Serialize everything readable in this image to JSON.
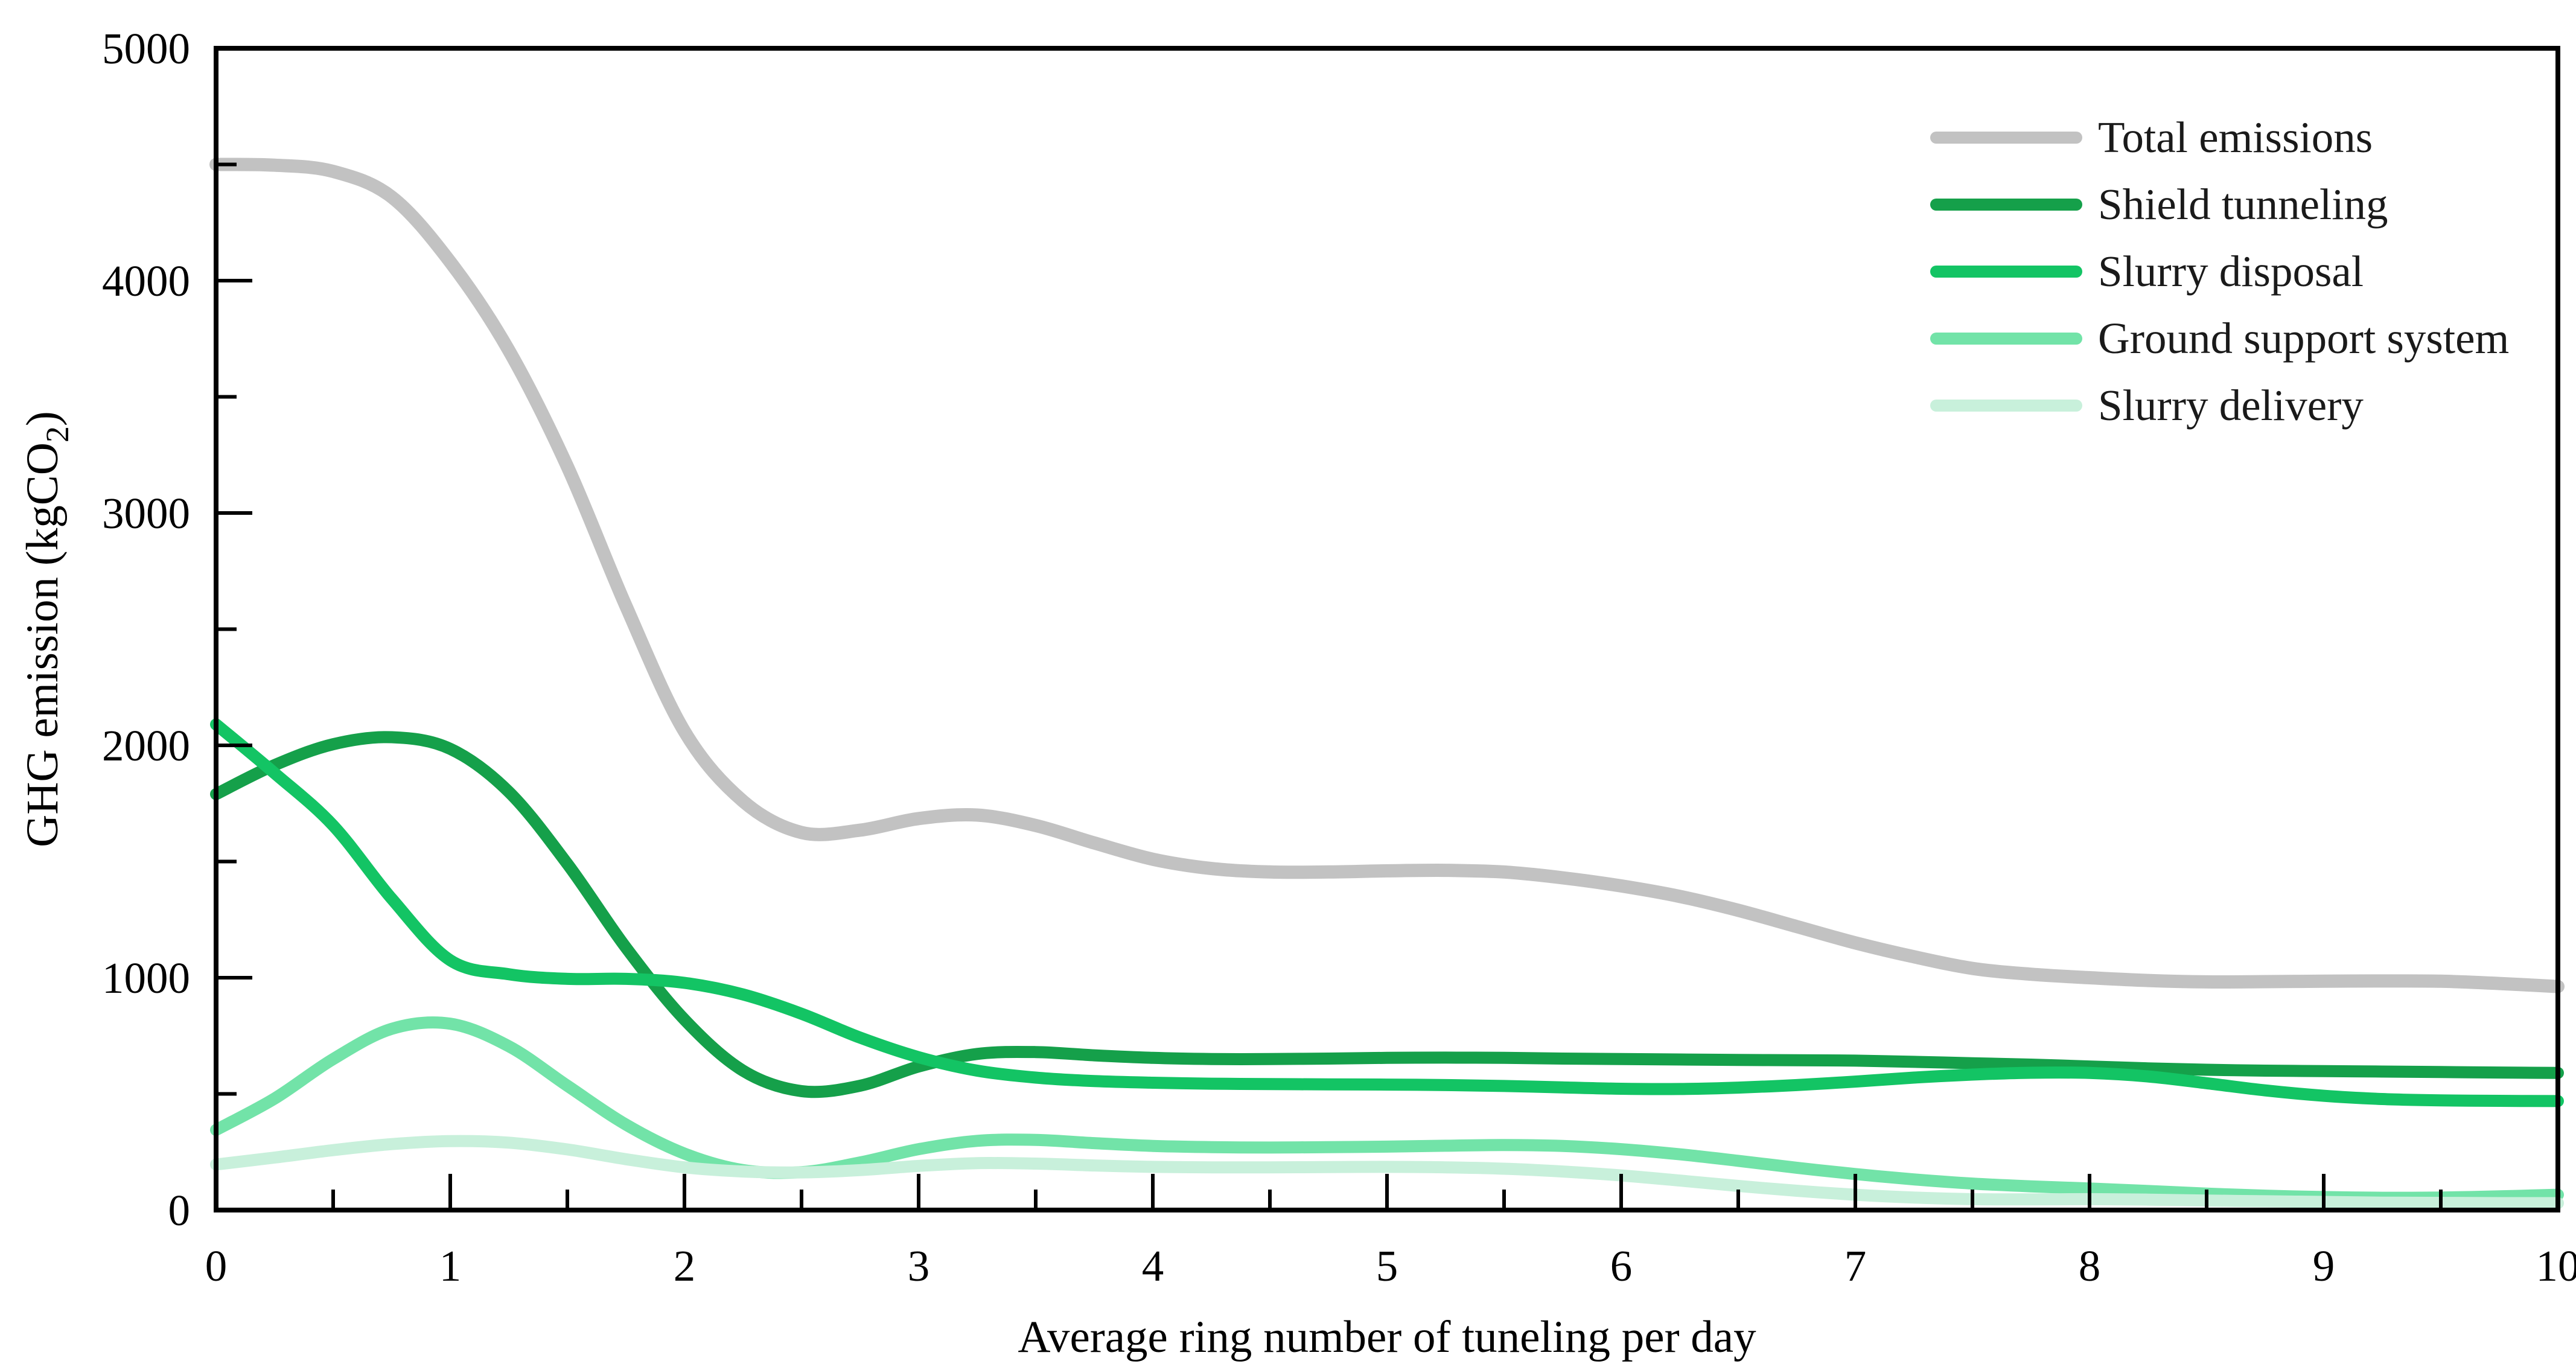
{
  "figure": {
    "background_color": "#ffffff",
    "text_color": "#000000",
    "axis_color": "#000000"
  },
  "chart_data": {
    "type": "line",
    "title": "",
    "xlabel": "Average ring number of tuneling per day",
    "ylabel": "GHG emission (kgCO2)",
    "ylabel_parts": {
      "pre": "GHG emission (kgCO",
      "sub": "2",
      "post": ")"
    },
    "xlim": [
      0,
      10
    ],
    "ylim": [
      0,
      5000
    ],
    "x_major_step": 1,
    "x_minor_step": 0.5,
    "y_major_step": 1000,
    "y_minor_step": 500,
    "x_tick_labels": [
      "0",
      "1",
      "2",
      "3",
      "4",
      "5",
      "6",
      "7",
      "8",
      "9",
      "10"
    ],
    "y_tick_labels": [
      "0",
      "1000",
      "2000",
      "3000",
      "4000",
      "5000"
    ],
    "grid": false,
    "legend_position": "top-right",
    "series": [
      {
        "name": "Total emissions",
        "color": "#c2c2c2",
        "width": 22,
        "points": [
          [
            0,
            4500
          ],
          [
            0.25,
            4497
          ],
          [
            0.5,
            4470
          ],
          [
            0.75,
            4360
          ],
          [
            1,
            4080
          ],
          [
            1.25,
            3700
          ],
          [
            1.5,
            3200
          ],
          [
            1.75,
            2600
          ],
          [
            2,
            2060
          ],
          [
            2.25,
            1760
          ],
          [
            2.5,
            1625
          ],
          [
            2.75,
            1635
          ],
          [
            3,
            1685
          ],
          [
            3.25,
            1700
          ],
          [
            3.5,
            1655
          ],
          [
            3.75,
            1580
          ],
          [
            4,
            1510
          ],
          [
            4.25,
            1470
          ],
          [
            4.5,
            1455
          ],
          [
            4.75,
            1455
          ],
          [
            5,
            1460
          ],
          [
            5.25,
            1462
          ],
          [
            5.5,
            1455
          ],
          [
            5.75,
            1430
          ],
          [
            6,
            1395
          ],
          [
            6.25,
            1350
          ],
          [
            6.5,
            1290
          ],
          [
            6.75,
            1220
          ],
          [
            7,
            1150
          ],
          [
            7.25,
            1090
          ],
          [
            7.5,
            1040
          ],
          [
            7.75,
            1015
          ],
          [
            8,
            1000
          ],
          [
            8.25,
            988
          ],
          [
            8.5,
            982
          ],
          [
            8.75,
            983
          ],
          [
            9,
            985
          ],
          [
            9.25,
            986
          ],
          [
            9.5,
            985
          ],
          [
            9.75,
            975
          ],
          [
            10,
            962
          ]
        ]
      },
      {
        "name": "Shield tunneling",
        "color": "#15a04a",
        "width": 20,
        "points": [
          [
            0,
            1790
          ],
          [
            0.25,
            1915
          ],
          [
            0.5,
            2005
          ],
          [
            0.75,
            2035
          ],
          [
            1,
            1985
          ],
          [
            1.25,
            1800
          ],
          [
            1.5,
            1490
          ],
          [
            1.75,
            1130
          ],
          [
            2,
            820
          ],
          [
            2.25,
            600
          ],
          [
            2.5,
            512
          ],
          [
            2.75,
            535
          ],
          [
            3,
            618
          ],
          [
            3.25,
            672
          ],
          [
            3.5,
            680
          ],
          [
            3.75,
            666
          ],
          [
            4,
            655
          ],
          [
            4.25,
            650
          ],
          [
            4.5,
            650
          ],
          [
            4.75,
            652
          ],
          [
            5,
            655
          ],
          [
            5.25,
            656
          ],
          [
            5.5,
            655
          ],
          [
            5.75,
            652
          ],
          [
            6,
            650
          ],
          [
            6.25,
            648
          ],
          [
            6.5,
            646
          ],
          [
            6.75,
            645
          ],
          [
            7,
            643
          ],
          [
            7.25,
            638
          ],
          [
            7.5,
            632
          ],
          [
            7.75,
            626
          ],
          [
            8,
            618
          ],
          [
            8.25,
            610
          ],
          [
            8.5,
            604
          ],
          [
            8.75,
            600
          ],
          [
            9,
            598
          ],
          [
            9.25,
            596
          ],
          [
            9.5,
            594
          ],
          [
            9.75,
            592
          ],
          [
            10,
            590
          ]
        ]
      },
      {
        "name": "Slurry disposal",
        "color": "#13c464",
        "width": 20,
        "points": [
          [
            0,
            2090
          ],
          [
            0.25,
            1880
          ],
          [
            0.5,
            1655
          ],
          [
            0.75,
            1340
          ],
          [
            1,
            1075
          ],
          [
            1.25,
            1015
          ],
          [
            1.5,
            995
          ],
          [
            1.75,
            995
          ],
          [
            2,
            978
          ],
          [
            2.25,
            928
          ],
          [
            2.5,
            845
          ],
          [
            2.75,
            742
          ],
          [
            3,
            658
          ],
          [
            3.25,
            600
          ],
          [
            3.5,
            570
          ],
          [
            3.75,
            555
          ],
          [
            4,
            548
          ],
          [
            4.25,
            544
          ],
          [
            4.5,
            542
          ],
          [
            4.75,
            541
          ],
          [
            5,
            540
          ],
          [
            5.25,
            538
          ],
          [
            5.5,
            534
          ],
          [
            5.75,
            528
          ],
          [
            6,
            522
          ],
          [
            6.25,
            521
          ],
          [
            6.5,
            527
          ],
          [
            6.75,
            538
          ],
          [
            7,
            553
          ],
          [
            7.25,
            570
          ],
          [
            7.5,
            583
          ],
          [
            7.75,
            591
          ],
          [
            8,
            590
          ],
          [
            8.25,
            575
          ],
          [
            8.5,
            546
          ],
          [
            8.75,
            515
          ],
          [
            9,
            492
          ],
          [
            9.25,
            478
          ],
          [
            9.5,
            472
          ],
          [
            9.75,
            470
          ],
          [
            10,
            469
          ]
        ]
      },
      {
        "name": "Ground support system",
        "color": "#72e3a8",
        "width": 20,
        "points": [
          [
            0,
            345
          ],
          [
            0.25,
            480
          ],
          [
            0.5,
            650
          ],
          [
            0.75,
            780
          ],
          [
            1,
            802
          ],
          [
            1.25,
            705
          ],
          [
            1.5,
            535
          ],
          [
            1.75,
            368
          ],
          [
            2,
            243
          ],
          [
            2.25,
            172
          ],
          [
            2.5,
            163
          ],
          [
            2.75,
            205
          ],
          [
            3,
            262
          ],
          [
            3.25,
            298
          ],
          [
            3.5,
            302
          ],
          [
            3.75,
            288
          ],
          [
            4,
            276
          ],
          [
            4.25,
            271
          ],
          [
            4.5,
            269
          ],
          [
            4.75,
            271
          ],
          [
            5,
            273
          ],
          [
            5.25,
            277
          ],
          [
            5.5,
            280
          ],
          [
            5.75,
            276
          ],
          [
            6,
            262
          ],
          [
            6.25,
            240
          ],
          [
            6.5,
            212
          ],
          [
            6.75,
            182
          ],
          [
            7,
            155
          ],
          [
            7.25,
            132
          ],
          [
            7.5,
            114
          ],
          [
            7.75,
            102
          ],
          [
            8,
            93
          ],
          [
            8.25,
            82
          ],
          [
            8.5,
            71
          ],
          [
            8.75,
            62
          ],
          [
            9,
            56
          ],
          [
            9.25,
            53
          ],
          [
            9.5,
            54
          ],
          [
            9.75,
            59
          ],
          [
            10,
            66
          ]
        ]
      },
      {
        "name": "Slurry delivery",
        "color": "#c8f0db",
        "width": 20,
        "points": [
          [
            0,
            196
          ],
          [
            0.25,
            226
          ],
          [
            0.5,
            258
          ],
          [
            0.75,
            284
          ],
          [
            1,
            297
          ],
          [
            1.25,
            290
          ],
          [
            1.5,
            261
          ],
          [
            1.75,
            219
          ],
          [
            2,
            184
          ],
          [
            2.25,
            166
          ],
          [
            2.5,
            162
          ],
          [
            2.75,
            172
          ],
          [
            3,
            190
          ],
          [
            3.25,
            202
          ],
          [
            3.5,
            200
          ],
          [
            3.75,
            192
          ],
          [
            4,
            186
          ],
          [
            4.25,
            184
          ],
          [
            4.5,
            184
          ],
          [
            4.75,
            185
          ],
          [
            5,
            186
          ],
          [
            5.25,
            184
          ],
          [
            5.5,
            178
          ],
          [
            5.75,
            166
          ],
          [
            6,
            149
          ],
          [
            6.25,
            127
          ],
          [
            6.5,
            104
          ],
          [
            6.75,
            83
          ],
          [
            7,
            66
          ],
          [
            7.25,
            54
          ],
          [
            7.5,
            47
          ],
          [
            7.75,
            46
          ],
          [
            8,
            47
          ],
          [
            8.25,
            45
          ],
          [
            8.5,
            41
          ],
          [
            8.75,
            38
          ],
          [
            9,
            35
          ],
          [
            9.25,
            32
          ],
          [
            9.5,
            31
          ],
          [
            9.75,
            30
          ],
          [
            10,
            30
          ]
        ]
      }
    ]
  }
}
